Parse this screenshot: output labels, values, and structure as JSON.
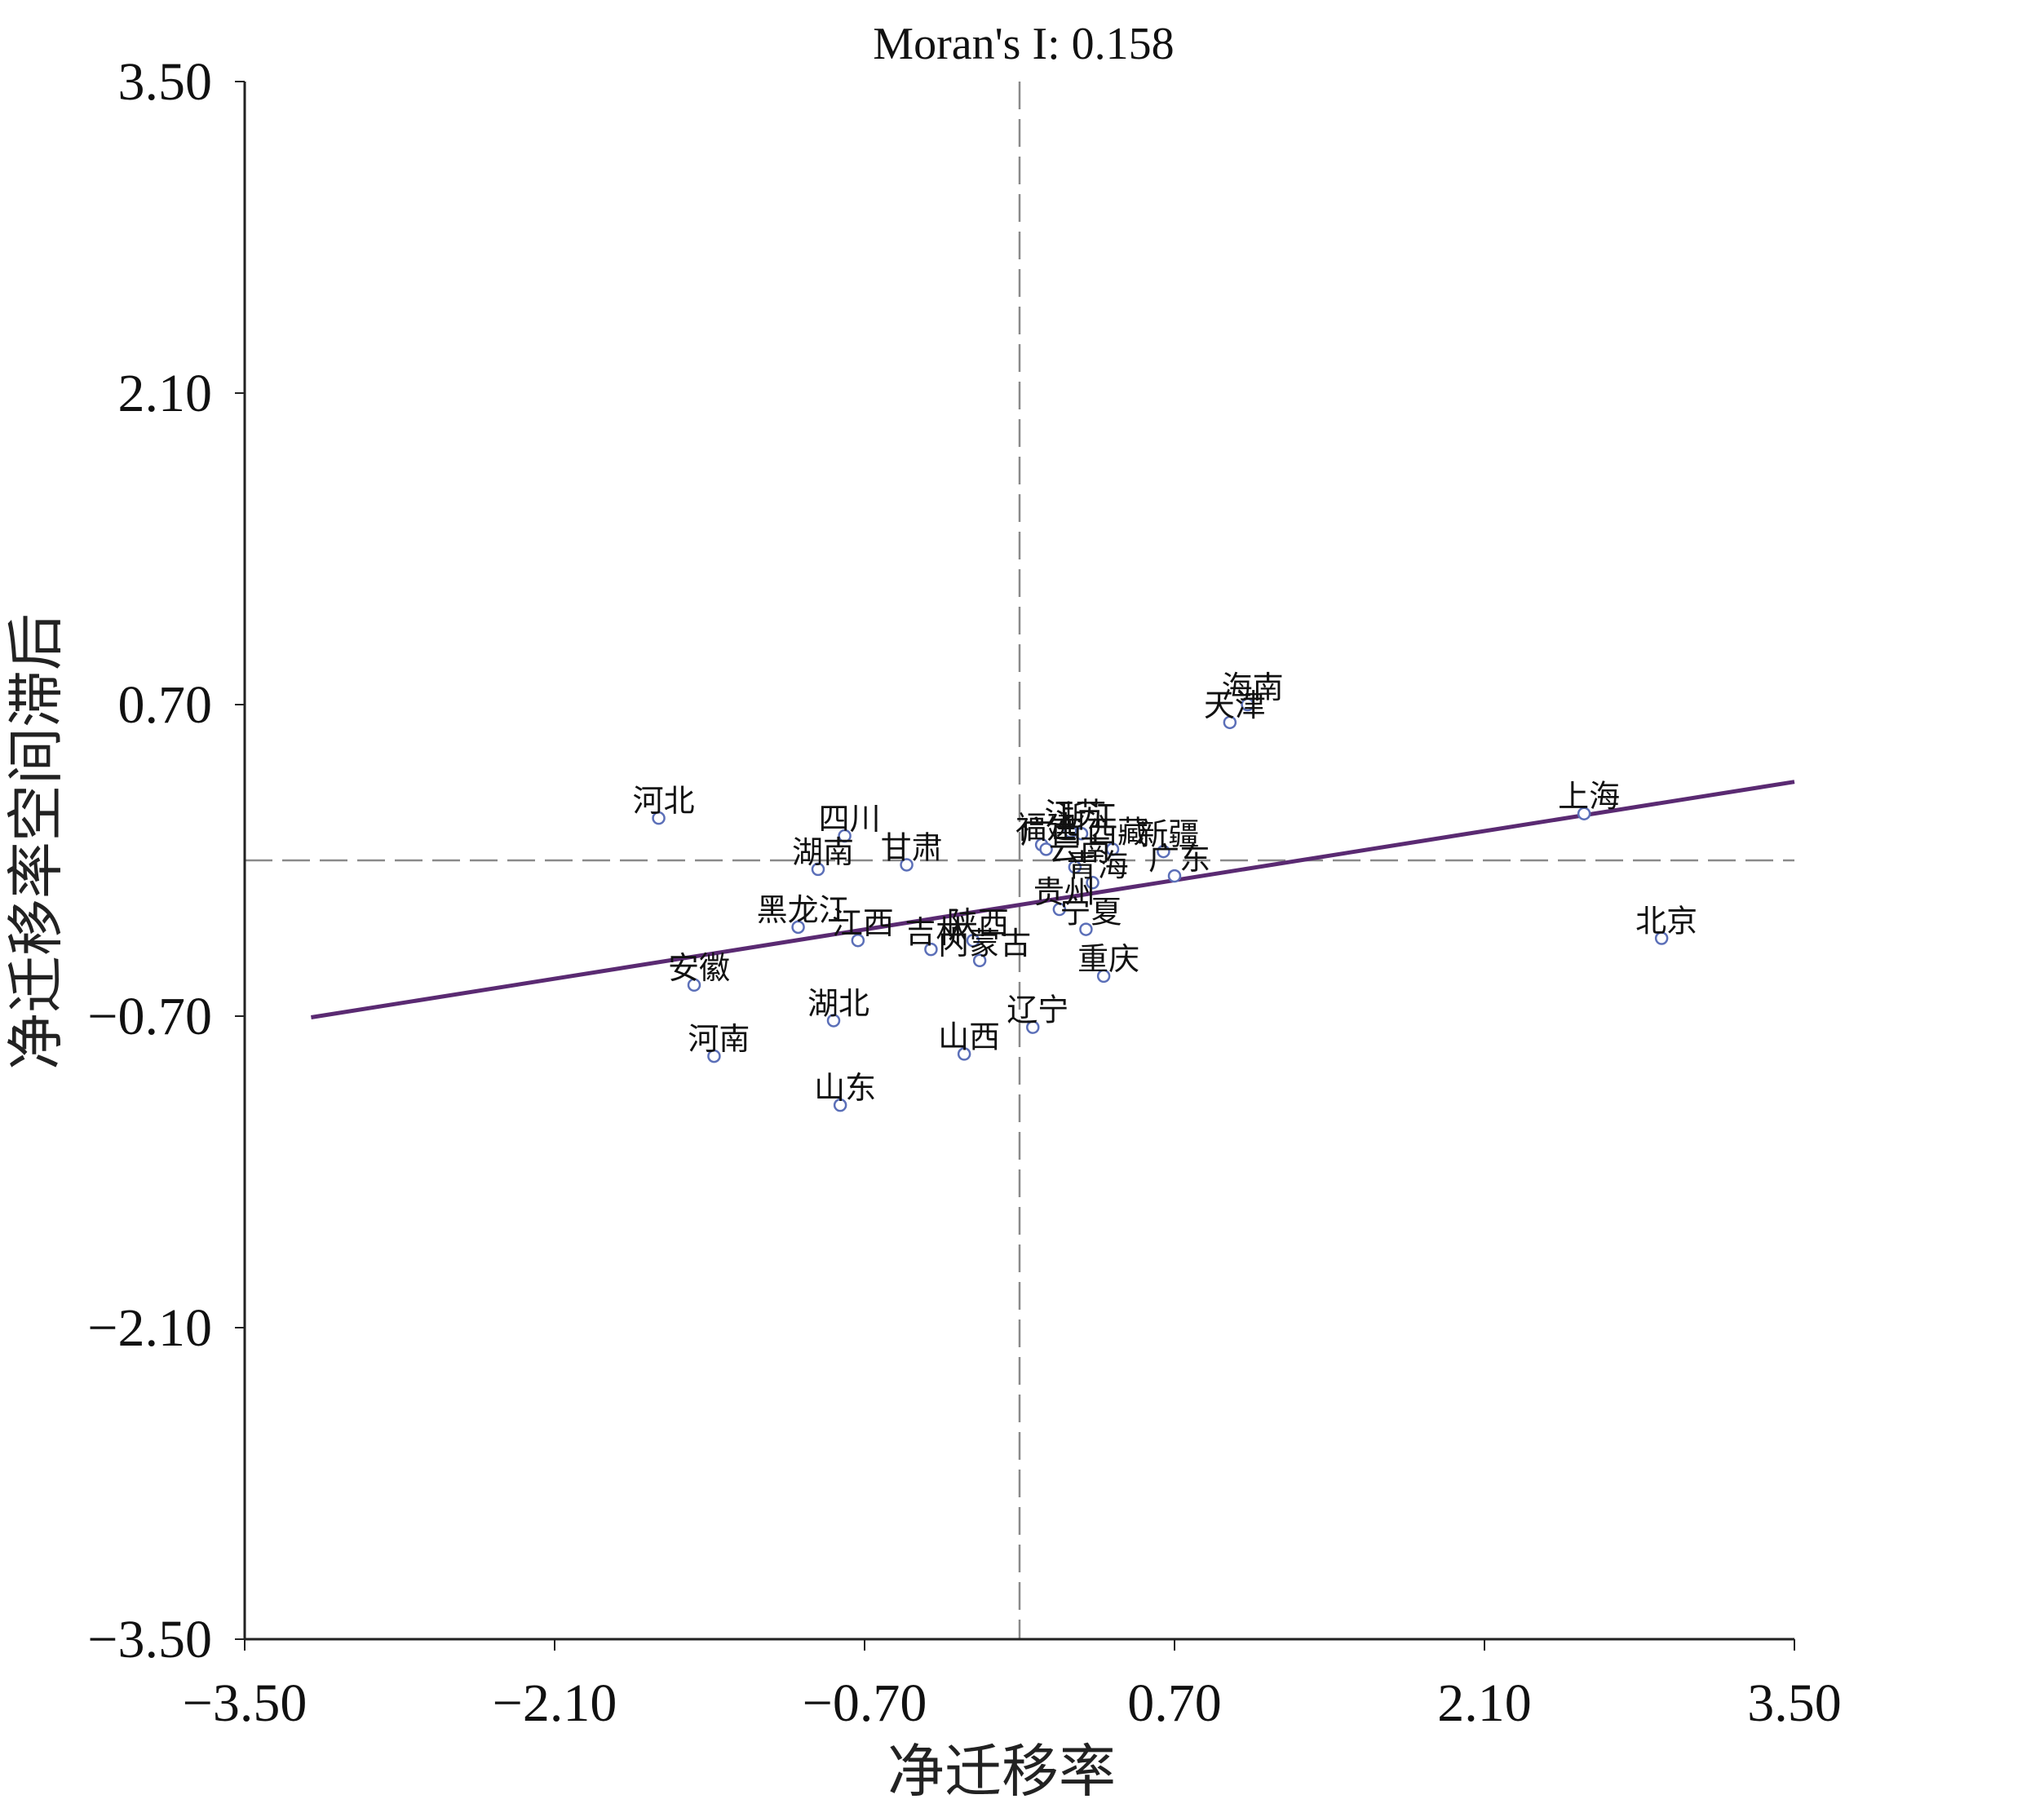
{
  "chart_data": {
    "type": "scatter",
    "title": "Moran's I: 0.158",
    "xlabel": "净迁移率",
    "ylabel": "净迁移率空间滞后",
    "xlim": [
      -3.5,
      3.5
    ],
    "ylim": [
      -3.5,
      3.5
    ],
    "xticks": [
      "−3.50",
      "−2.10",
      "−0.70",
      "0.70",
      "2.10",
      "3.50"
    ],
    "yticks": [
      "3.50",
      "2.10",
      "0.70",
      "−0.70",
      "−2.10",
      "−3.50"
    ],
    "grid": false,
    "reference_lines": {
      "x": 0,
      "y": 0
    },
    "trend_line": {
      "slope": 0.158,
      "intercept": -0.2
    },
    "points": [
      {
        "label": "河北",
        "x": -1.63,
        "y": 0.19
      },
      {
        "label": "四川",
        "x": -0.79,
        "y": 0.11
      },
      {
        "label": "湖南",
        "x": -0.91,
        "y": -0.04
      },
      {
        "label": "甘肃",
        "x": -0.51,
        "y": -0.02
      },
      {
        "label": "黑龙江",
        "x": -1.0,
        "y": -0.3
      },
      {
        "label": "江西",
        "x": -0.73,
        "y": -0.36
      },
      {
        "label": "吉林",
        "x": -0.4,
        "y": -0.4
      },
      {
        "label": "陕西",
        "x": -0.21,
        "y": -0.36
      },
      {
        "label": "内蒙古",
        "x": -0.18,
        "y": -0.45
      },
      {
        "label": "安徽",
        "x": -1.47,
        "y": -0.56
      },
      {
        "label": "湖北",
        "x": -0.84,
        "y": -0.72
      },
      {
        "label": "河南",
        "x": -1.38,
        "y": -0.88
      },
      {
        "label": "山西",
        "x": -0.25,
        "y": -0.87
      },
      {
        "label": "山东",
        "x": -0.81,
        "y": -1.1
      },
      {
        "label": "江苏",
        "x": 0.23,
        "y": 0.13
      },
      {
        "label": "福建",
        "x": 0.1,
        "y": 0.07
      },
      {
        "label": "浙江",
        "x": 0.28,
        "y": 0.12
      },
      {
        "label": "广西",
        "x": 0.12,
        "y": 0.05
      },
      {
        "label": "西藏",
        "x": 0.42,
        "y": 0.05
      },
      {
        "label": "新疆",
        "x": 0.65,
        "y": 0.04
      },
      {
        "label": "云南",
        "x": 0.25,
        "y": -0.03
      },
      {
        "label": "青海",
        "x": 0.33,
        "y": -0.1
      },
      {
        "label": "广东",
        "x": 0.7,
        "y": -0.07
      },
      {
        "label": "贵州",
        "x": 0.18,
        "y": -0.22
      },
      {
        "label": "宁夏",
        "x": 0.3,
        "y": -0.31
      },
      {
        "label": "重庆",
        "x": 0.38,
        "y": -0.52
      },
      {
        "label": "辽宁",
        "x": 0.06,
        "y": -0.75
      },
      {
        "label": "海南",
        "x": 1.03,
        "y": 0.7
      },
      {
        "label": "天津",
        "x": 0.95,
        "y": 0.62
      },
      {
        "label": "上海",
        "x": 2.55,
        "y": 0.21
      },
      {
        "label": "北京",
        "x": 2.9,
        "y": -0.35
      }
    ]
  }
}
